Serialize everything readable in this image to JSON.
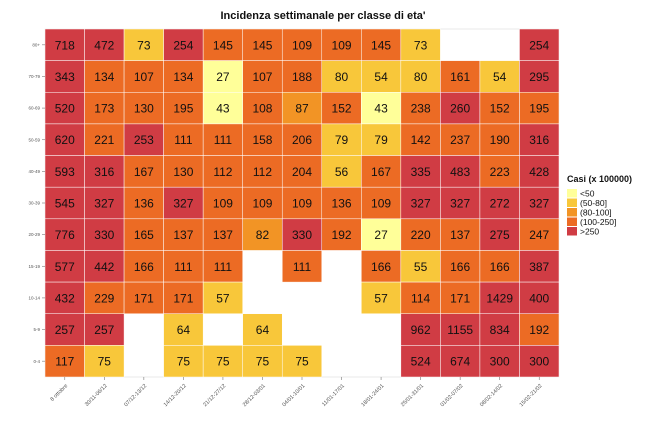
{
  "chart_data": {
    "type": "heatmap",
    "title": "Incidenza settimanale per classe di eta'",
    "xlabel": "",
    "ylabel": "",
    "x_categories": [
      "8 ottobre",
      "30/11-06/12",
      "07/12-13/12",
      "14/12-20/12",
      "21/12-27/12",
      "28/12-03/01",
      "04/01-10/01",
      "11/01-17/01",
      "18/01-24/01",
      "25/01-31/01",
      "01/02-07/02",
      "08/02-14/02",
      "15/02-21/02"
    ],
    "y_categories": [
      "80+",
      "70-79",
      "60-69",
      "50-59",
      "40-49",
      "30-39",
      "20-29",
      "15-19",
      "10-14",
      "5-9",
      "0-4"
    ],
    "values": [
      [
        718,
        472,
        73,
        254,
        145,
        145,
        109,
        109,
        145,
        73,
        null,
        null,
        254
      ],
      [
        343,
        134,
        107,
        134,
        27,
        107,
        188,
        80,
        54,
        80,
        161,
        54,
        295
      ],
      [
        520,
        173,
        130,
        195,
        43,
        108,
        87,
        152,
        43,
        238,
        260,
        152,
        195
      ],
      [
        620,
        221,
        253,
        111,
        111,
        158,
        206,
        79,
        79,
        142,
        237,
        190,
        316
      ],
      [
        593,
        316,
        167,
        130,
        112,
        112,
        204,
        56,
        167,
        335,
        483,
        223,
        428
      ],
      [
        545,
        327,
        136,
        327,
        109,
        109,
        109,
        136,
        109,
        327,
        327,
        272,
        327
      ],
      [
        776,
        330,
        165,
        137,
        137,
        82,
        330,
        192,
        27,
        220,
        137,
        275,
        247
      ],
      [
        577,
        442,
        166,
        111,
        111,
        null,
        111,
        null,
        166,
        55,
        166,
        166,
        387
      ],
      [
        432,
        229,
        171,
        171,
        57,
        null,
        null,
        null,
        57,
        114,
        171,
        1429,
        400
      ],
      [
        257,
        257,
        null,
        64,
        null,
        64,
        null,
        null,
        null,
        962,
        1155,
        834,
        192
      ],
      [
        117,
        75,
        null,
        75,
        75,
        75,
        75,
        null,
        null,
        524,
        674,
        300,
        300
      ]
    ],
    "legend": {
      "title": "Casi (x 100000)",
      "position": "right",
      "items": [
        {
          "label": "<50",
          "color": "#FFFF99"
        },
        {
          "label": "(50-80]",
          "color": "#F8C73A"
        },
        {
          "label": "(80-100]",
          "color": "#F29425"
        },
        {
          "label": "(100-250]",
          "color": "#EC6B24"
        },
        {
          "label": ">250",
          "color": "#D03C44"
        }
      ]
    },
    "grid": false
  }
}
